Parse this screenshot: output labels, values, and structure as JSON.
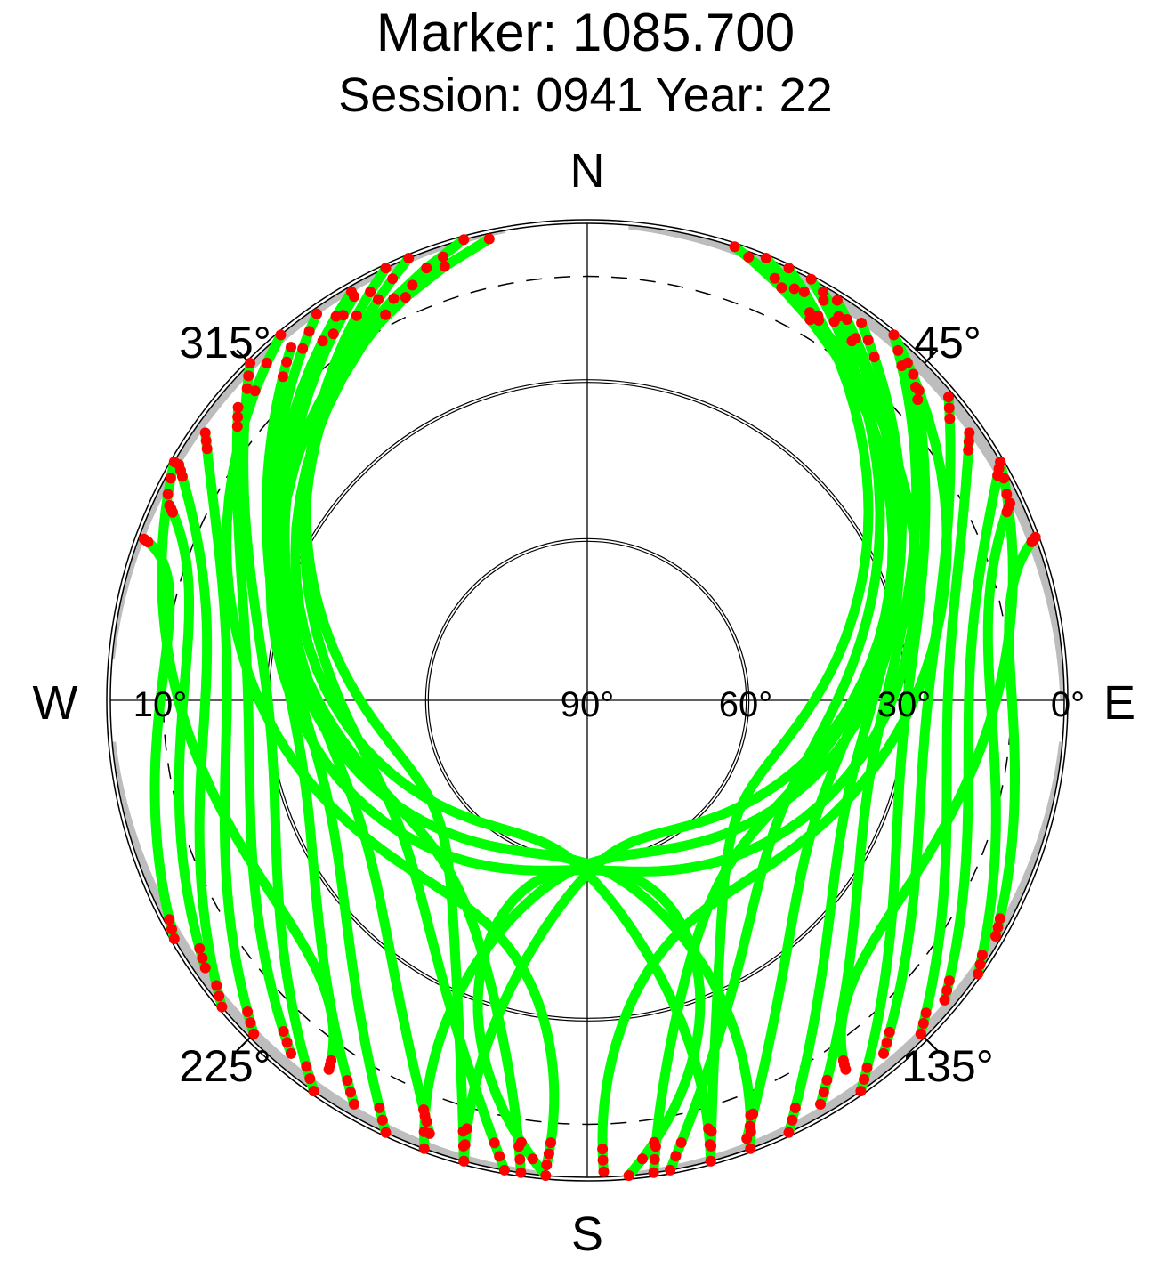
{
  "title": "Marker: 1085.700",
  "subtitle": "Session: 0941 Year: 22",
  "chart_data": {
    "type": "scatter",
    "projection": "polar-skyplot",
    "compass": {
      "north": "N",
      "east": "E",
      "south": "S",
      "west": "W"
    },
    "azimuth_labels": [
      "45°",
      "135°",
      "225°",
      "315°"
    ],
    "elevation_labels": [
      "0°",
      "10°",
      "30°",
      "60°",
      "90°"
    ],
    "elevation_rings": [
      30,
      60
    ],
    "elevation_mask_deg": 10,
    "colors": {
      "tracks": "#00ff00",
      "track_ends": "#ff0000",
      "horizon_obstruction": "#bdbdbd"
    },
    "series": [
      {
        "color": "#00ff00",
        "description": "satellite tracks (azimuth/elevation)",
        "tracks": [
          {
            "start": [
              335,
              0
            ],
            "mid": [
              240,
              55
            ],
            "end": [
              195,
              0
            ]
          },
          {
            "start": [
              338,
              0
            ],
            "mid": [
              245,
              48
            ],
            "end": [
              190,
              0
            ]
          },
          {
            "start": [
              330,
              2
            ],
            "mid": [
              250,
              42
            ],
            "end": [
              200,
              3
            ]
          },
          {
            "start": [
              325,
              1
            ],
            "mid": [
              255,
              38
            ],
            "end": [
              205,
              0
            ]
          },
          {
            "start": [
              320,
              3
            ],
            "mid": [
              260,
              35
            ],
            "end": [
              210,
              2
            ]
          },
          {
            "start": [
              315,
              0
            ],
            "mid": [
              265,
              30
            ],
            "end": [
              215,
              0
            ]
          },
          {
            "start": [
              310,
              4
            ],
            "mid": [
              268,
              26
            ],
            "end": [
              220,
              3
            ]
          },
          {
            "start": [
              305,
              2
            ],
            "mid": [
              270,
              22
            ],
            "end": [
              225,
              1
            ]
          },
          {
            "start": [
              300,
              1
            ],
            "mid": [
              272,
              18
            ],
            "end": [
              230,
              0
            ]
          },
          {
            "start": [
              295,
              3
            ],
            "mid": [
              274,
              14
            ],
            "end": [
              235,
              2
            ]
          },
          {
            "start": [
              290,
              1
            ],
            "mid": [
              276,
              10
            ],
            "end": [
              240,
              0
            ]
          },
          {
            "start": [
              342,
              2
            ],
            "mid": [
              200,
              62
            ],
            "end": [
              165,
              0
            ]
          },
          {
            "start": [
              345,
              0
            ],
            "mid": [
              190,
              60
            ],
            "end": [
              160,
              0
            ]
          },
          {
            "start": [
              348,
              1
            ],
            "mid": [
              180,
              58
            ],
            "end": [
              175,
              0
            ]
          },
          {
            "start": [
              25,
              0
            ],
            "mid": [
              120,
              55
            ],
            "end": [
              165,
              0
            ]
          },
          {
            "start": [
              28,
              0
            ],
            "mid": [
              115,
              48
            ],
            "end": [
              170,
              0
            ]
          },
          {
            "start": [
              32,
              1
            ],
            "mid": [
              110,
              42
            ],
            "end": [
              160,
              2
            ]
          },
          {
            "start": [
              36,
              2
            ],
            "mid": [
              105,
              38
            ],
            "end": [
              155,
              0
            ]
          },
          {
            "start": [
              40,
              0
            ],
            "mid": [
              100,
              35
            ],
            "end": [
              150,
              2
            ]
          },
          {
            "start": [
              45,
              3
            ],
            "mid": [
              97,
              30
            ],
            "end": [
              145,
              0
            ]
          },
          {
            "start": [
              50,
              1
            ],
            "mid": [
              94,
              26
            ],
            "end": [
              140,
              3
            ]
          },
          {
            "start": [
              55,
              2
            ],
            "mid": [
              92,
              22
            ],
            "end": [
              135,
              1
            ]
          },
          {
            "start": [
              60,
              0
            ],
            "mid": [
              90,
              18
            ],
            "end": [
              130,
              2
            ]
          },
          {
            "start": [
              65,
              2
            ],
            "mid": [
              88,
              14
            ],
            "end": [
              125,
              0
            ]
          },
          {
            "start": [
              70,
              0
            ],
            "mid": [
              86,
              10
            ],
            "end": [
              120,
              1
            ]
          },
          {
            "start": [
              22,
              0
            ],
            "mid": [
              160,
              62
            ],
            "end": [
              195,
              0
            ]
          },
          {
            "start": [
              20,
              1
            ],
            "mid": [
              170,
              60
            ],
            "end": [
              200,
              0
            ]
          },
          {
            "start": [
              18,
              0
            ],
            "mid": [
              180,
              58
            ],
            "end": [
              185,
              0
            ]
          },
          {
            "start": [
              320,
              0
            ],
            "mid": [
              215,
              45
            ],
            "end": [
              185,
              2
            ]
          },
          {
            "start": [
              40,
              0
            ],
            "mid": [
              145,
              45
            ],
            "end": [
              178,
              1
            ]
          },
          {
            "start": [
              300,
              0
            ],
            "mid": [
              240,
              20
            ],
            "end": [
              215,
              5
            ]
          },
          {
            "start": [
              60,
              0
            ],
            "mid": [
              120,
              20
            ],
            "end": [
              145,
              5
            ]
          },
          {
            "start": [
              330,
              1
            ],
            "mid": [
              230,
              50
            ],
            "end": [
              188,
              0
            ]
          },
          {
            "start": [
              30,
              1
            ],
            "mid": [
              130,
              50
            ],
            "end": [
              172,
              0
            ]
          }
        ]
      },
      {
        "color": "#ff0000",
        "description": "low-elevation / rising-setting observations"
      }
    ]
  }
}
